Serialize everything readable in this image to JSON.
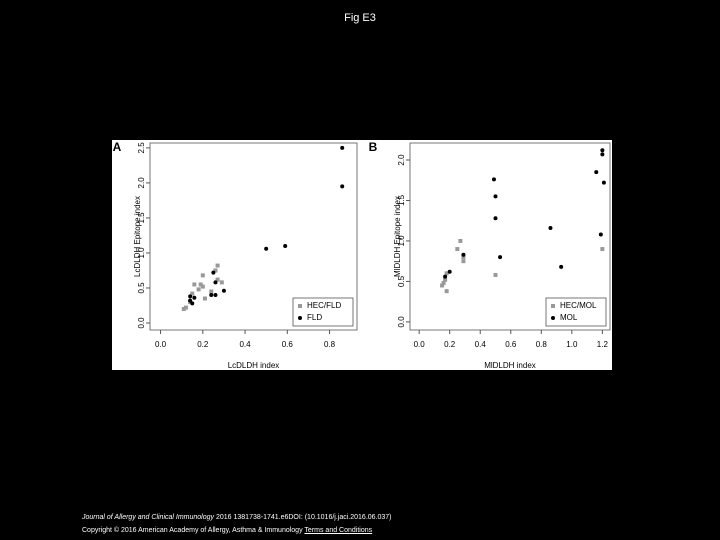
{
  "title": "Fig E3",
  "chart_data": [
    {
      "type": "scatter",
      "panel_label": "A",
      "x_label": "LcDLDH index",
      "y_label": "LcDLDH Epitope index",
      "xlim": [
        -0.05,
        0.93
      ],
      "ylim": [
        -0.1,
        2.57
      ],
      "xticks": [
        {
          "value": 0,
          "label": "0.0"
        },
        0.2,
        0.4,
        0.6,
        0.8
      ],
      "yticks": [
        {
          "value": 0,
          "label": "0.0"
        },
        0.5,
        {
          "value": 1,
          "label": "1.0"
        },
        1.5,
        {
          "value": 2,
          "label": "2.0"
        },
        2.5
      ],
      "legend": "bottom-right",
      "series": [
        {
          "name": "HEC/FLD",
          "color": "#999999",
          "marker": "square",
          "x": [
            0.11,
            0.12,
            0.14,
            0.15,
            0.16,
            0.18,
            0.19,
            0.2,
            0.2,
            0.21,
            0.24,
            0.26,
            0.27,
            0.27,
            0.29
          ],
          "values": [
            0.2,
            0.22,
            0.3,
            0.42,
            0.55,
            0.48,
            0.55,
            0.52,
            0.68,
            0.35,
            0.45,
            0.75,
            0.82,
            0.62,
            0.58
          ]
        },
        {
          "name": "FLD",
          "color": "#000000",
          "marker": "circle",
          "x": [
            0.14,
            0.14,
            0.15,
            0.16,
            0.24,
            0.25,
            0.26,
            0.26,
            0.3,
            0.5,
            0.59,
            0.86,
            0.86
          ],
          "values": [
            0.32,
            0.38,
            0.28,
            0.36,
            0.4,
            0.72,
            0.4,
            0.58,
            0.46,
            1.06,
            1.1,
            2.5,
            1.95
          ]
        }
      ]
    },
    {
      "type": "scatter",
      "panel_label": "B",
      "x_label": "MlDLDH index",
      "y_label": "MlDLDH Epitope index",
      "xlim": [
        -0.06,
        1.25
      ],
      "ylim": [
        -0.1,
        2.21
      ],
      "xticks": [
        {
          "value": 0,
          "label": "0.0"
        },
        0.2,
        0.4,
        0.6,
        0.8,
        {
          "value": 1,
          "label": "1.0"
        },
        1.2
      ],
      "yticks": [
        {
          "value": 0,
          "label": "0.0"
        },
        0.5,
        {
          "value": 1,
          "label": "1.0"
        },
        1.5,
        {
          "value": 2,
          "label": "2.0"
        }
      ],
      "legend": "bottom-right",
      "series": [
        {
          "name": "HEC/MOL",
          "color": "#999999",
          "marker": "square",
          "x": [
            0.15,
            0.16,
            0.17,
            0.18,
            0.18,
            0.25,
            0.27,
            0.29,
            0.29,
            0.5,
            1.2
          ],
          "values": [
            0.45,
            0.48,
            0.52,
            0.38,
            0.6,
            0.9,
            1.0,
            0.8,
            0.75,
            0.58,
            0.9
          ]
        },
        {
          "name": "MOL",
          "color": "#000000",
          "marker": "circle",
          "x": [
            0.17,
            0.2,
            0.29,
            0.49,
            0.5,
            0.5,
            0.53,
            0.86,
            0.93,
            1.16,
            1.2,
            1.2,
            1.21,
            1.19
          ],
          "values": [
            0.56,
            0.62,
            0.83,
            1.76,
            1.55,
            1.28,
            0.8,
            1.16,
            0.68,
            1.85,
            2.12,
            2.07,
            1.72,
            1.08
          ]
        }
      ]
    }
  ],
  "citation": {
    "journal": "Journal of Allergy and Clinical Immunology",
    "details": " 2016 1381738-1741.e6DOI: (10.1016/j.jaci.2016.06.037)"
  },
  "copyright": "Copyright © 2016 American Academy of Allergy, Asthma & Immunology",
  "terms_link": "Terms and Conditions"
}
